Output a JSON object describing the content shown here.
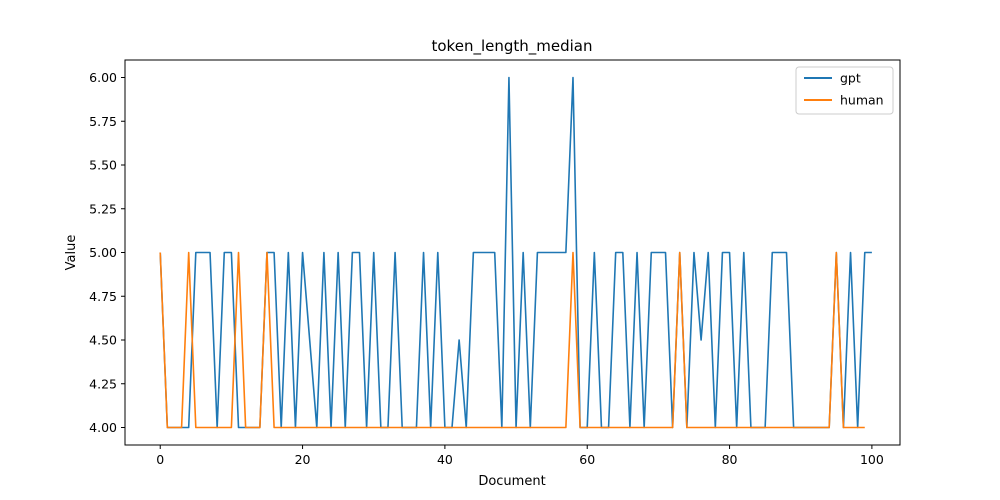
{
  "chart_data": {
    "type": "line",
    "title": "token_length_median",
    "xlabel": "Document",
    "ylabel": "Value",
    "xlim": [
      -4.95,
      103.95
    ],
    "ylim": [
      3.9,
      6.1
    ],
    "xticks": [
      0,
      20,
      40,
      60,
      80,
      100
    ],
    "xtick_labels": [
      "0",
      "20",
      "40",
      "60",
      "80",
      "100"
    ],
    "yticks": [
      4.0,
      4.25,
      4.5,
      4.75,
      5.0,
      5.25,
      5.5,
      5.75,
      6.0
    ],
    "ytick_labels": [
      "4.00",
      "4.25",
      "4.50",
      "4.75",
      "5.00",
      "5.25",
      "5.50",
      "5.75",
      "6.00"
    ],
    "grid": false,
    "legend_position": "top-right",
    "series": [
      {
        "name": "gpt",
        "color": "#1f77b4",
        "values": [
          5,
          4,
          4,
          4,
          4,
          5,
          5,
          5,
          4,
          5,
          5,
          4,
          4,
          4,
          4,
          5,
          5,
          4,
          5,
          4,
          5,
          4.5,
          4,
          5,
          4,
          5,
          4,
          5,
          5,
          4,
          5,
          4,
          4,
          5,
          4,
          4,
          4,
          5,
          4,
          5,
          4,
          4,
          4.5,
          4,
          5,
          5,
          5,
          5,
          4,
          6,
          4,
          5,
          4,
          5,
          5,
          5,
          5,
          5,
          6,
          4,
          4,
          5,
          4,
          4,
          5,
          5,
          4,
          5,
          4,
          5,
          5,
          5,
          4,
          5,
          4,
          5,
          4.5,
          5,
          4,
          5,
          5,
          4,
          5,
          4,
          4,
          4,
          5,
          5,
          5,
          4,
          4,
          4,
          4,
          4,
          4,
          5,
          4,
          5,
          4,
          5,
          5
        ]
      },
      {
        "name": "human",
        "color": "#ff7f0e",
        "values": [
          5,
          4,
          4,
          4,
          5,
          4,
          4,
          4,
          4,
          4,
          4,
          5,
          4,
          4,
          4,
          5,
          4,
          4,
          4,
          4,
          4,
          4,
          4,
          4,
          4,
          4,
          4,
          4,
          4,
          4,
          4,
          4,
          4,
          4,
          4,
          4,
          4,
          4,
          4,
          4,
          4,
          4,
          4,
          4,
          4,
          4,
          4,
          4,
          4,
          4,
          4,
          4,
          4,
          4,
          4,
          4,
          4,
          4,
          5,
          4,
          4,
          4,
          4,
          4,
          4,
          4,
          4,
          4,
          4,
          4,
          4,
          4,
          4,
          5,
          4,
          4,
          4,
          4,
          4,
          4,
          4,
          4,
          4,
          4,
          4,
          4,
          4,
          4,
          4,
          4,
          4,
          4,
          4,
          4,
          4,
          5,
          4,
          4,
          4,
          4
        ]
      }
    ]
  }
}
